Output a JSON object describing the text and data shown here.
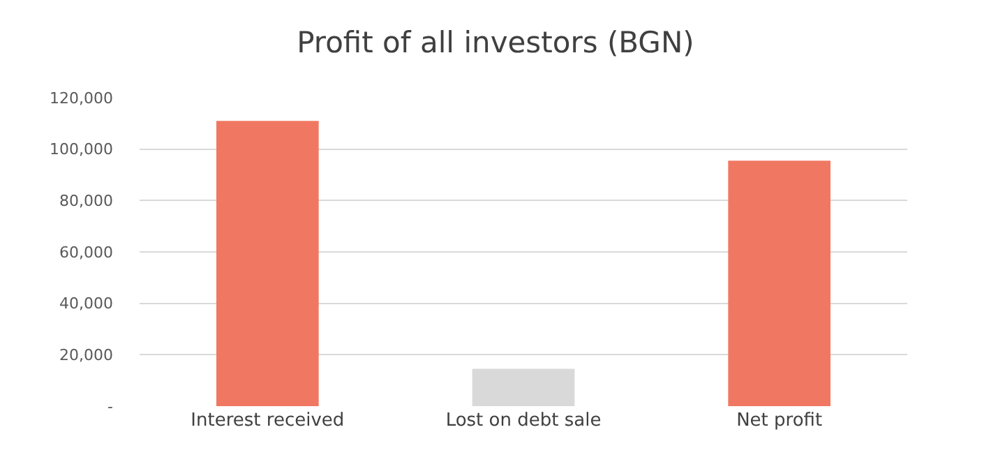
{
  "chart_data": {
    "type": "bar",
    "title": "Profit of all investors (BGN)",
    "categories": [
      "Interest received",
      "Lost on debt sale",
      "Net profit"
    ],
    "values": [
      111000,
      14500,
      95500
    ],
    "colors": [
      "#f07862",
      "#d9d9d9",
      "#f07862"
    ],
    "ylim": [
      0,
      120000
    ],
    "yticks": [
      {
        "value": 0,
        "label": "-"
      },
      {
        "value": 20000,
        "label": "20,000"
      },
      {
        "value": 40000,
        "label": "40,000"
      },
      {
        "value": 60000,
        "label": "60,000"
      },
      {
        "value": 80000,
        "label": "80,000"
      },
      {
        "value": 100000,
        "label": "100,000"
      },
      {
        "value": 120000,
        "label": "120,000"
      }
    ],
    "grid": "y"
  }
}
